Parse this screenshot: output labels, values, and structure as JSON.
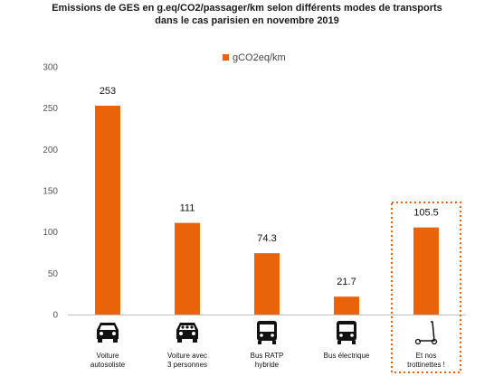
{
  "chart_data": {
    "type": "bar",
    "title": "Emissions de GES en g.eq/CO2/passager/km selon différents modes de transports",
    "subtitle": "dans le cas parisien en novembre 2019",
    "categories": [
      {
        "line1": "Voiture",
        "line2": "autosoliste",
        "icon": "car-icon",
        "highlighted": false
      },
      {
        "line1": "Voiture avec",
        "line2": "3 personnes",
        "icon": "carpool-icon",
        "highlighted": false
      },
      {
        "line1": "Bus RATP",
        "line2": "hybride",
        "icon": "bus-icon",
        "highlighted": false
      },
      {
        "line1": "Bus électrique",
        "line2": "",
        "icon": "electric-bus-icon",
        "highlighted": false
      },
      {
        "line1": "Et nos",
        "line2": "trottinettes !",
        "icon": "scooter-icon",
        "highlighted": true
      }
    ],
    "series": [
      {
        "name": "gCO2eq/km",
        "values": [
          253,
          111,
          74.3,
          21.7,
          105.5
        ],
        "color": "#e8630a"
      }
    ],
    "data_labels": [
      "253",
      "111",
      "74.3",
      "21.7",
      "105.5"
    ],
    "ylim": [
      0,
      300
    ],
    "yticks": [
      0,
      50,
      100,
      150,
      200,
      250,
      300
    ],
    "grid": false,
    "legend_position": "top-center",
    "highlight_color": "#e8630a",
    "axis_color": "#bfbfbf"
  }
}
